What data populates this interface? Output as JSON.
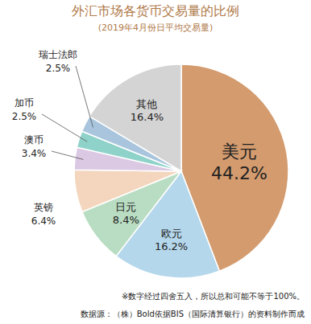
{
  "chart_data": {
    "type": "pie",
    "title": "外汇市场各货币交易量的比例",
    "subtitle": "(2019年4月份日平均交易量)",
    "categories": [
      "美元",
      "欧元",
      "日元",
      "英镑",
      "澳币",
      "加币",
      "瑞士法郎",
      "其他"
    ],
    "values": [
      44.2,
      16.2,
      8.4,
      6.4,
      3.4,
      2.5,
      2.5,
      16.4
    ],
    "value_labels": [
      "44.2%",
      "16.2%",
      "8.4%",
      "6.4%",
      "3.4%",
      "2.5%",
      "2.5%",
      "16.4%"
    ],
    "colors": [
      "#d39b6e",
      "#b5d7ec",
      "#b9ddc2",
      "#f3d6bd",
      "#dbc8e3",
      "#8fd2c9",
      "#a8c5dd",
      "#d4d4d4"
    ],
    "data_labels": true,
    "annotations": [
      "※数字经过四舍五入，所以总和可能不等于100%。",
      "数据源：（株）Bold依据BIS（国际清算银行）的资料制作而成"
    ]
  }
}
